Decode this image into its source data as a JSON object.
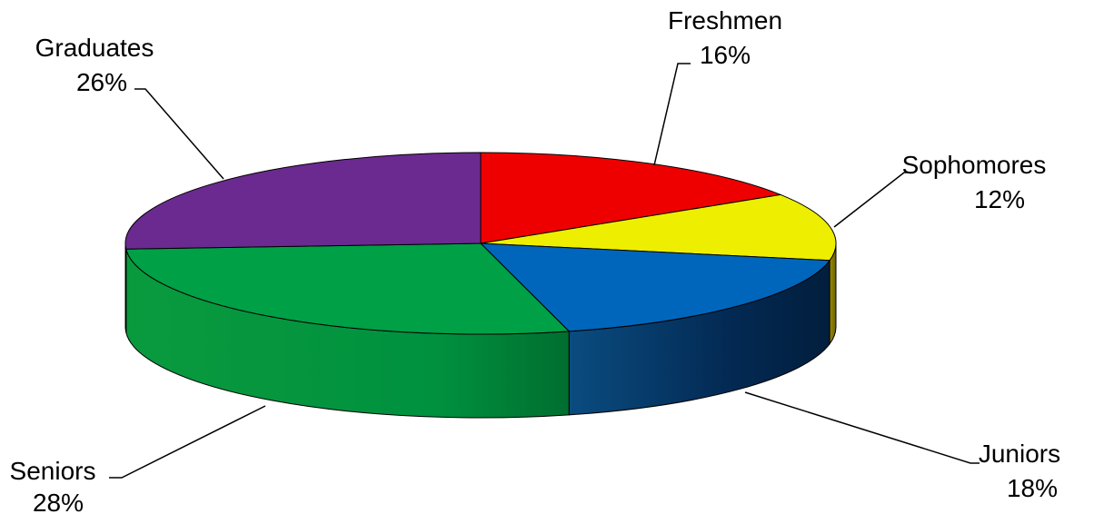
{
  "chart_data": {
    "type": "pie",
    "style": "3d",
    "title": "",
    "slices": [
      {
        "category": "Freshmen",
        "value": 16,
        "label": "16%",
        "color": "#ee0000",
        "side_color": "#a00000"
      },
      {
        "category": "Sophomores",
        "value": 12,
        "label": "12%",
        "color": "#eeee00",
        "side_color": "#8a8a00"
      },
      {
        "category": "Juniors",
        "value": 18,
        "label": "18%",
        "color": "#0066bb",
        "side_color": "#003366"
      },
      {
        "category": "Seniors",
        "value": 28,
        "label": "28%",
        "color": "#00a046",
        "side_color": "#00853a"
      },
      {
        "category": "Graduates",
        "value": 26,
        "label": "26%",
        "color": "#6b2a8f",
        "side_color": "#4a1d63"
      }
    ],
    "legend": "none",
    "data_labels": "outside with leader lines"
  }
}
